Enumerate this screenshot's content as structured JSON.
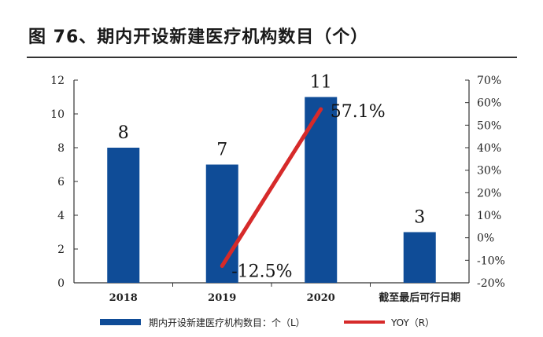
{
  "header": {
    "title": "图 76、期内开设新建医疗机构数目（个）"
  },
  "chart_data": {
    "type": "bar",
    "categories": [
      "2018",
      "2019",
      "2020",
      "截至最后可行日期"
    ],
    "series": [
      {
        "name": "期内开设新建医疗机构数目：个（L）",
        "type": "bar",
        "axis": "left",
        "values": [
          8,
          7,
          11,
          3
        ],
        "data_labels": [
          "8",
          "7",
          "11",
          "3"
        ],
        "color": "#0f4c97"
      },
      {
        "name": "YOY（R）",
        "type": "line",
        "axis": "right",
        "values": [
          null,
          -12.5,
          57.1,
          null
        ],
        "data_labels": [
          "",
          "-12.5%",
          "57.1%",
          ""
        ],
        "color": "#d62a2a"
      }
    ],
    "y_left": {
      "min": 0,
      "max": 12,
      "ticks": [
        "0",
        "2",
        "4",
        "6",
        "8",
        "10",
        "12"
      ]
    },
    "y_right": {
      "min": -20,
      "max": 70,
      "ticks": [
        "-20%",
        "-10%",
        "0%",
        "10%",
        "20%",
        "30%",
        "40%",
        "50%",
        "60%",
        "70%"
      ]
    },
    "grid": false,
    "legend_position": "bottom"
  }
}
